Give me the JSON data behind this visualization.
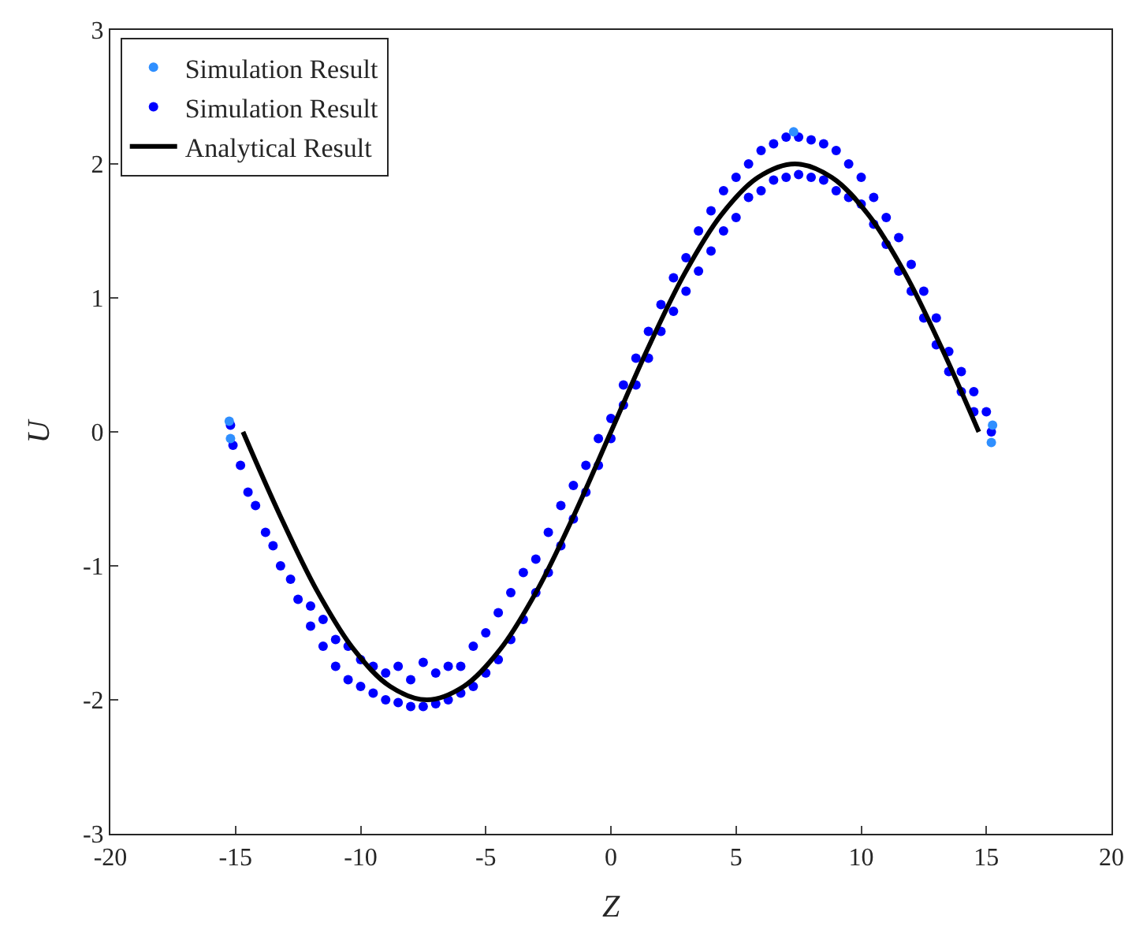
{
  "chart_data": {
    "type": "scatter",
    "xlabel": "Z",
    "ylabel": "U",
    "xlim": [
      -20,
      20
    ],
    "ylim": [
      -3,
      3
    ],
    "xticks": [
      -20,
      -15,
      -10,
      -5,
      0,
      5,
      10,
      15,
      20
    ],
    "yticks": [
      -3,
      -2,
      -1,
      0,
      1,
      2,
      3
    ],
    "grid": false,
    "legend": "top left",
    "marker": "circle",
    "series": [
      {
        "name": "Simulation Result",
        "color": "#2f8fff",
        "x": [
          -15.25,
          -15.2,
          15.25,
          15.2,
          7.3
        ],
        "values": [
          0.08,
          -0.05,
          0.05,
          -0.08,
          2.24
        ]
      },
      {
        "name": "Simulation Result",
        "color": "#0000ff",
        "x": [
          -15.2,
          -15.1,
          -14.8,
          -14.5,
          -14.2,
          -13.8,
          -13.5,
          -13.2,
          -12.8,
          -12.5,
          -12,
          -12,
          -11.5,
          -11.5,
          -11,
          -11,
          -10.5,
          -10.5,
          -10,
          -10,
          -9.5,
          -9.5,
          -9,
          -9,
          -8.5,
          -8.5,
          -8,
          -8,
          -7.5,
          -7.5,
          -7,
          -7,
          -6.5,
          -6.5,
          -6,
          -6,
          -5.5,
          -5.5,
          -5,
          -5,
          -4.5,
          -4.5,
          -4,
          -4,
          -3.5,
          -3.5,
          -3,
          -3,
          -2.5,
          -2.5,
          -2,
          -2,
          -1.5,
          -1.5,
          -1,
          -1,
          -0.5,
          -0.5,
          0,
          0,
          0.5,
          0.5,
          1,
          1,
          1.5,
          1.5,
          2,
          2,
          2.5,
          2.5,
          3,
          3,
          3.5,
          3.5,
          4,
          4,
          4.5,
          4.5,
          5,
          5,
          5.5,
          5.5,
          6,
          6,
          6.5,
          6.5,
          7,
          7,
          7.5,
          7.5,
          8,
          8,
          8.5,
          8.5,
          9,
          9,
          9.5,
          9.5,
          10,
          10,
          10.5,
          10.5,
          11,
          11,
          11.5,
          11.5,
          12,
          12,
          12.5,
          12.5,
          13,
          13,
          13.5,
          13.5,
          14,
          14,
          14.5,
          14.5,
          15,
          15.2
        ],
        "values": [
          0.05,
          -0.1,
          -0.25,
          -0.45,
          -0.55,
          -0.75,
          -0.85,
          -1.0,
          -1.1,
          -1.25,
          -1.3,
          -1.45,
          -1.4,
          -1.6,
          -1.55,
          -1.75,
          -1.6,
          -1.85,
          -1.7,
          -1.9,
          -1.75,
          -1.95,
          -1.8,
          -2.0,
          -1.75,
          -2.02,
          -1.85,
          -2.05,
          -1.72,
          -2.05,
          -1.8,
          -2.03,
          -1.75,
          -2.0,
          -1.75,
          -1.95,
          -1.6,
          -1.9,
          -1.5,
          -1.8,
          -1.35,
          -1.7,
          -1.2,
          -1.55,
          -1.05,
          -1.4,
          -0.95,
          -1.2,
          -0.75,
          -1.05,
          -0.55,
          -0.85,
          -0.4,
          -0.65,
          -0.25,
          -0.45,
          -0.05,
          -0.25,
          0.1,
          -0.05,
          0.35,
          0.2,
          0.55,
          0.35,
          0.75,
          0.55,
          0.95,
          0.75,
          1.15,
          0.9,
          1.3,
          1.05,
          1.5,
          1.2,
          1.65,
          1.35,
          1.8,
          1.5,
          1.9,
          1.6,
          2.0,
          1.75,
          2.1,
          1.8,
          2.15,
          1.88,
          2.2,
          1.9,
          2.2,
          1.92,
          2.18,
          1.9,
          2.15,
          1.88,
          2.1,
          1.8,
          2.0,
          1.75,
          1.9,
          1.7,
          1.75,
          1.55,
          1.6,
          1.4,
          1.45,
          1.2,
          1.25,
          1.05,
          1.05,
          0.85,
          0.85,
          0.65,
          0.6,
          0.45,
          0.45,
          0.3,
          0.3,
          0.15,
          0.15,
          0.0
        ]
      },
      {
        "name": "Analytical Result",
        "color": "#000000",
        "type": "line",
        "marker": "none",
        "line_style": "solid",
        "x": [
          -14.7,
          -13.23,
          -11.76,
          -10.29,
          -8.82,
          -7.35,
          -5.88,
          -4.41,
          -2.94,
          -1.47,
          0,
          1.47,
          2.94,
          4.41,
          5.88,
          7.35,
          8.82,
          10.29,
          11.76,
          13.23,
          14.7
        ],
        "values": [
          0,
          -0.62,
          -1.18,
          -1.62,
          -1.9,
          -2,
          -1.9,
          -1.62,
          -1.18,
          -0.62,
          0,
          0.62,
          1.18,
          1.62,
          1.9,
          2,
          1.9,
          1.62,
          1.18,
          0.62,
          0
        ]
      }
    ]
  }
}
